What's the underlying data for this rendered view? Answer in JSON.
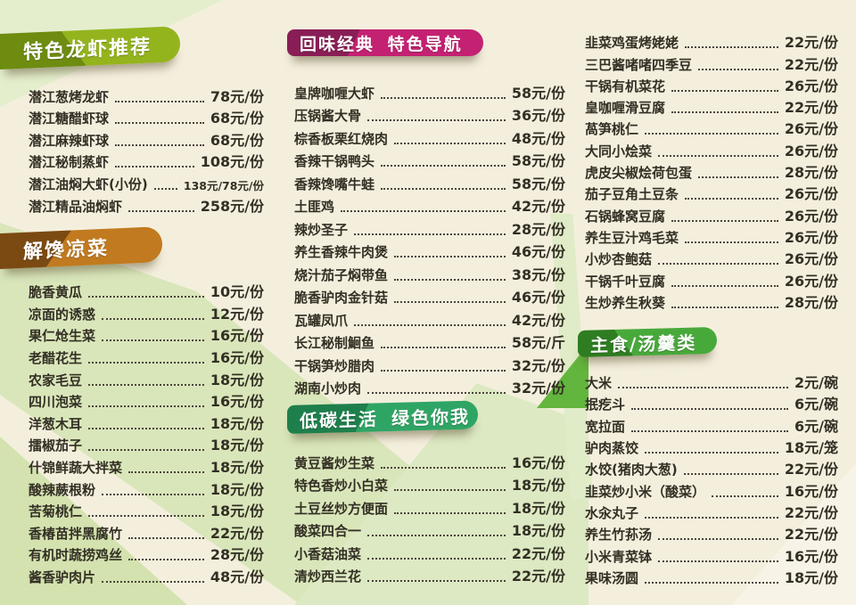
{
  "page": {
    "background": "#f4efdd",
    "text_color": "#332f24",
    "accent_greens": [
      "#e4eecd",
      "#d9e6ba",
      "#62b53d"
    ]
  },
  "sections": {
    "lobster": {
      "title": "特色龙虾推荐",
      "banner": {
        "main": "#94b41e",
        "dark": "#6d8c10",
        "angle": "55deg",
        "split": "42%"
      },
      "items": [
        {
          "name": "潜江葱烤龙虾",
          "price": "78元/份"
        },
        {
          "name": "潜江糖醋虾球",
          "price": "68元/份"
        },
        {
          "name": "潜江麻辣虾球",
          "price": "68元/份"
        },
        {
          "name": "潜江秘制蒸虾",
          "price": "108元/份"
        },
        {
          "name": "潜江油焖大虾(小份)",
          "price": "138元/78元/份",
          "small": true
        },
        {
          "name": "潜江精品油焖虾",
          "price": "258元/份"
        }
      ]
    },
    "cold": {
      "title": "解馋凉菜",
      "banner": {
        "main": "#c17a1f",
        "dark": "#7b4a12",
        "angle": "125deg",
        "split": "38%"
      },
      "items": [
        {
          "name": "脆香黄瓜",
          "price": "10元/份"
        },
        {
          "name": "凉面的诱惑",
          "price": "12元/份"
        },
        {
          "name": "果仁炝生菜",
          "price": "16元/份"
        },
        {
          "name": "老醋花生",
          "price": "16元/份"
        },
        {
          "name": "农家毛豆",
          "price": "18元/份"
        },
        {
          "name": "四川泡菜",
          "price": "16元/份"
        },
        {
          "name": "洋葱木耳",
          "price": "18元/份"
        },
        {
          "name": "擂椒茄子",
          "price": "18元/份"
        },
        {
          "name": "什锦鲜蔬大拌菜",
          "price": "18元/份"
        },
        {
          "name": "酸辣蕨根粉",
          "price": "18元/份"
        },
        {
          "name": "苦菊桃仁",
          "price": "18元/份"
        },
        {
          "name": "香椿苗拌黑腐竹",
          "price": "22元/份"
        },
        {
          "name": "有机时蔬捞鸡丝",
          "price": "28元/份"
        },
        {
          "name": "酱香驴肉片",
          "price": "48元/份"
        }
      ]
    },
    "classic": {
      "title": "回味经典 特色导航",
      "banner": {
        "main": "#c42173",
        "dark": "#891d55",
        "angle": "115deg",
        "split": "35%"
      },
      "items": [
        {
          "name": "皇牌咖喱大虾",
          "price": "58元/份"
        },
        {
          "name": "压锅酱大骨",
          "price": "36元/份"
        },
        {
          "name": "棕香板栗红烧肉",
          "price": "48元/份"
        },
        {
          "name": "香辣干锅鸭头",
          "price": "58元/份"
        },
        {
          "name": "香辣馋嘴牛蛙",
          "price": "58元/份"
        },
        {
          "name": "土匪鸡",
          "price": "42元/份"
        },
        {
          "name": "辣炒圣子",
          "price": "28元/份"
        },
        {
          "name": "养生香辣牛肉煲",
          "price": "46元/份"
        },
        {
          "name": "烧汁茄子焖带鱼",
          "price": "38元/份"
        },
        {
          "name": "脆香驴肉金针菇",
          "price": "46元/份"
        },
        {
          "name": "瓦罐凤爪",
          "price": "42元/份"
        },
        {
          "name": "长江秘制鮰鱼",
          "price": "58元/斤"
        },
        {
          "name": "干锅笋炒腊肉",
          "price": "32元/份"
        },
        {
          "name": "湖南小炒肉",
          "price": "32元/份"
        }
      ]
    },
    "lowcarbon": {
      "title": "低碳生活 绿色你我",
      "banner": {
        "main": "#2fa565",
        "dark": "#1e7f4c",
        "angle": "115deg",
        "split": "40%"
      },
      "items": [
        {
          "name": "黄豆酱炒生菜",
          "price": "16元/份"
        },
        {
          "name": "特色香炒小白菜",
          "price": "18元/份"
        },
        {
          "name": "土豆丝炒方便面",
          "price": "18元/份"
        },
        {
          "name": "酸菜四合一",
          "price": "18元/份"
        },
        {
          "name": "小香菇油菜",
          "price": "22元/份"
        },
        {
          "name": "清炒西兰花",
          "price": "22元/份"
        }
      ]
    },
    "classic2": {
      "title": "",
      "items": [
        {
          "name": "韭菜鸡蛋烤姥姥",
          "price": "22元/份"
        },
        {
          "name": "三巴酱啫啫四季豆",
          "price": "22元/份"
        },
        {
          "name": "干锅有机菜花",
          "price": "26元/份"
        },
        {
          "name": "皇咖喱滑豆腐",
          "price": "22元/份"
        },
        {
          "name": "萵笋桃仁",
          "price": "26元/份"
        },
        {
          "name": "大同小烩菜",
          "price": "26元/份"
        },
        {
          "name": "虎皮尖椒烩荷包蛋",
          "price": "28元/份"
        },
        {
          "name": "茄子豆角土豆条",
          "price": "26元/份"
        },
        {
          "name": "石锅蜂窝豆腐",
          "price": "26元/份"
        },
        {
          "name": "养生豆汁鸡毛菜",
          "price": "26元/份"
        },
        {
          "name": "小炒杏鲍菇",
          "price": "26元/份"
        },
        {
          "name": "干锅千叶豆腐",
          "price": "26元/份"
        },
        {
          "name": "生炒养生秋葵",
          "price": "28元/份"
        }
      ]
    },
    "staple": {
      "title": "主食/汤羹类",
      "banner": {
        "main": "#48a93b",
        "dark": "#2e7d22",
        "angle": "55deg",
        "split": "35%"
      },
      "items": [
        {
          "name": "大米",
          "price": "2元/碗"
        },
        {
          "name": "抿疙斗",
          "price": "6元/碗"
        },
        {
          "name": "宽拉面",
          "price": "6元/碗"
        },
        {
          "name": "驴肉蒸饺",
          "price": "18元/笼"
        },
        {
          "name": "水饺(猪肉大葱)",
          "price": "22元/份"
        },
        {
          "name": "韭菜炒小米（酸菜）",
          "price": "16元/份"
        },
        {
          "name": "水汆丸子",
          "price": "22元/份"
        },
        {
          "name": "养生竹荪汤",
          "price": "22元/份"
        },
        {
          "name": "小米青菜钵",
          "price": "16元/份"
        },
        {
          "name": "果味汤圆",
          "price": "18元/份"
        }
      ]
    }
  }
}
